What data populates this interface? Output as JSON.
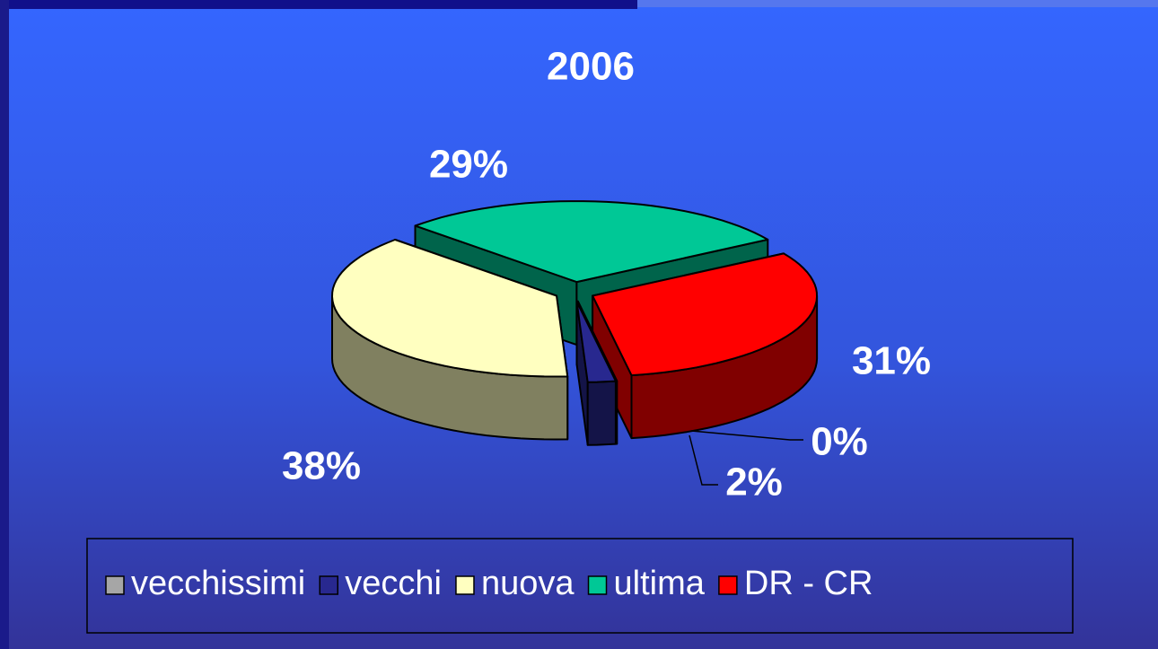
{
  "chart_data": {
    "type": "pie3d",
    "title": "2006",
    "categories": [
      "vecchissimi",
      "vecchi",
      "nuova",
      "ultima",
      "DR - CR"
    ],
    "values": [
      0,
      2,
      38,
      29,
      31
    ],
    "value_labels": [
      "0%",
      "2%",
      "38%",
      "29%",
      "31%"
    ],
    "colors": [
      "#a6a6a6",
      "#28288f",
      "#ffffc0",
      "#00c896",
      "#ff0000"
    ],
    "legend": "bottom"
  }
}
